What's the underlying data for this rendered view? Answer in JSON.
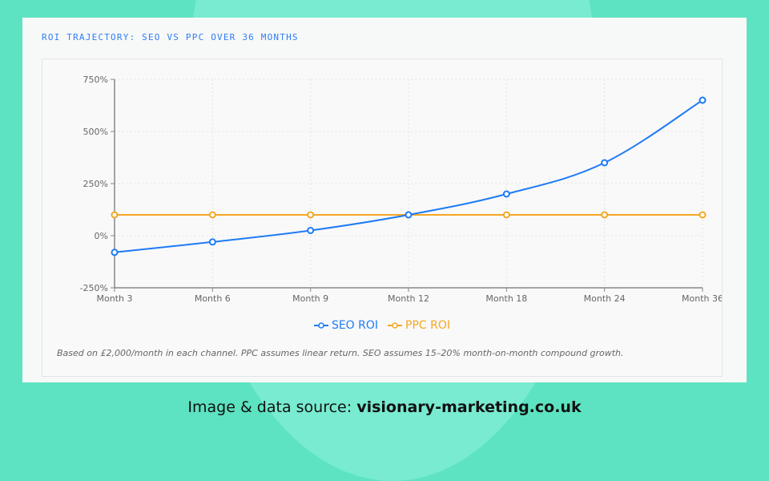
{
  "chart_data": {
    "type": "line",
    "title": "ROI TRAJECTORY: SEO VS PPC OVER 36 MONTHS",
    "categories": [
      "Month 3",
      "Month 6",
      "Month 9",
      "Month 12",
      "Month 18",
      "Month 24",
      "Month 36"
    ],
    "series": [
      {
        "name": "SEO ROI",
        "color": "#1f7bf5",
        "values": [
          -80,
          -30,
          25,
          100,
          200,
          350,
          650
        ]
      },
      {
        "name": "PPC ROI",
        "color": "#f5a623",
        "values": [
          100,
          100,
          100,
          100,
          100,
          100,
          100
        ]
      }
    ],
    "ylim": [
      -250,
      750
    ],
    "yticks": [
      -250,
      0,
      250,
      500,
      750
    ],
    "ytick_labels": [
      "-250%",
      "0%",
      "250%",
      "500%",
      "750%"
    ],
    "grid": true,
    "legend": "bottom",
    "note": "Based on £2,000/month in each channel. PPC assumes linear return. SEO assumes 15–20% month-on-month compound growth."
  },
  "footer": {
    "prefix": "Image & data source: ",
    "site": "visionary-marketing.co.uk"
  }
}
